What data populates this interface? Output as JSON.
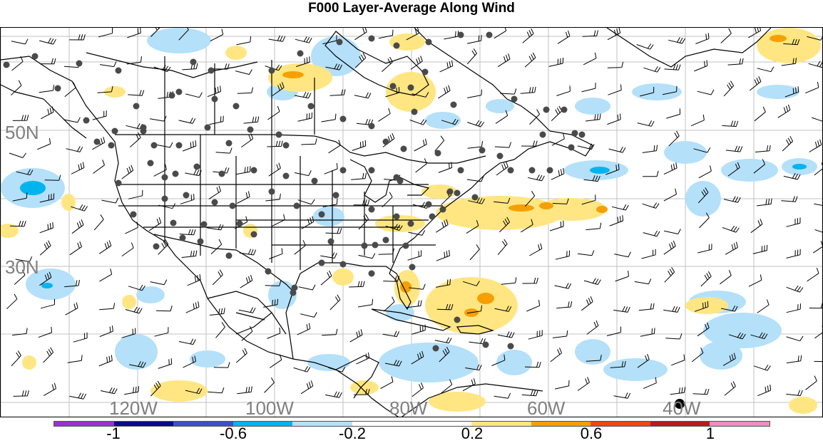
{
  "title": "F000 Layer-Average Along Wind",
  "map": {
    "lat_labels": [
      "50N",
      "30N"
    ],
    "lon_labels": [
      "120W",
      "100W",
      "80W",
      "60W",
      "40W"
    ],
    "gridline_color": "#c0c0c0",
    "label_color": "#808080"
  },
  "colorbar": {
    "colors": [
      "#9a32cd",
      "#0a0a8c",
      "#3c50c8",
      "#00b4f0",
      "#b4e0fa",
      "#ffffff",
      "#ffffff",
      "#ffe682",
      "#f5a000",
      "#f04614",
      "#b41e1e",
      "#f08cbe"
    ],
    "tick_labels": [
      "-1",
      "-0.6",
      "-0.2",
      "0.2",
      "0.6",
      "1"
    ]
  },
  "legend_colors": {
    "blue_light": "#b4e0fa",
    "blue": "#00b4f0",
    "yellow": "#ffe682",
    "orange": "#f5a000",
    "dot": "#4a4a4a"
  }
}
